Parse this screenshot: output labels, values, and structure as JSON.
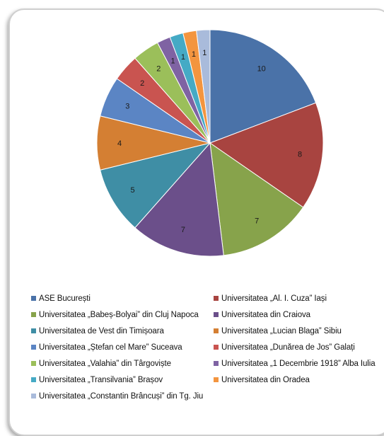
{
  "chart_data": {
    "type": "pie",
    "title": "",
    "categories": [
      "ASE București",
      "Universitatea „Al. I. Cuza” Iași",
      "Universitatea „Babeș-Bolyai” din Cluj Napoca",
      "Universitatea din Craiova",
      "Universitatea de Vest din Timișoara",
      "Universitatea „Lucian Blaga” Sibiu",
      "Universitatea „Ștefan cel Mare” Suceava",
      "Universitatea „Dunărea de Jos” Galați",
      "Universitatea „Valahia” din Târgoviște",
      "Universitatea „1 Decembrie 1918” Alba Iulia",
      "Universitatea „Transilvania” Brașov",
      "Universitatea din Oradea",
      "Universitatea „Constantin Brâncuși” din Tg. Jiu"
    ],
    "values": [
      10,
      8,
      7,
      7,
      5,
      4,
      3,
      2,
      2,
      1,
      1,
      1,
      1
    ],
    "colors": [
      "#4a72a8",
      "#a84440",
      "#87a34b",
      "#6b4f8a",
      "#3f8ea5",
      "#d47f33",
      "#5b85c4",
      "#c95450",
      "#9bbf5a",
      "#7f63a3",
      "#45aac5",
      "#f3953f",
      "#a9bbdb"
    ],
    "start_angle_deg": 0,
    "direction": "clockwise",
    "data_labels": true,
    "legend_position": "bottom"
  }
}
